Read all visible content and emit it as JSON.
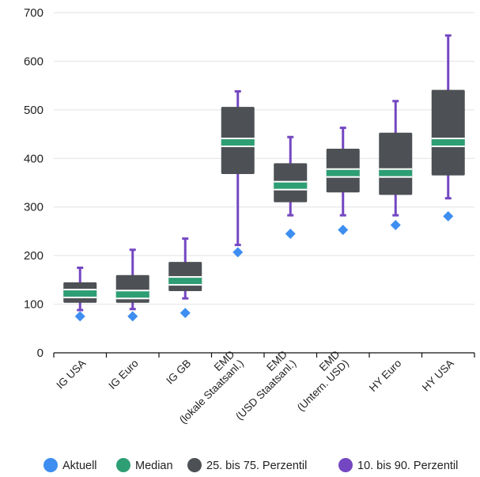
{
  "chart_data": {
    "type": "box",
    "title": "",
    "xlabel": "",
    "ylabel": "",
    "ylim": [
      0,
      700
    ],
    "yticks": [
      "0",
      "100",
      "200",
      "300",
      "400",
      "500",
      "600",
      "700"
    ],
    "grid": true,
    "legend_position": "bottom",
    "categories": [
      [
        "IG USA"
      ],
      [
        "IG Euro"
      ],
      [
        "IG GB"
      ],
      [
        "EMD",
        "(lokale Staatsanl.)"
      ],
      [
        "EMD",
        "(USD Staatsanl.)"
      ],
      [
        "EMD",
        "(Untern. USD)"
      ],
      [
        "HY Euro"
      ],
      [
        "HY USA"
      ]
    ],
    "series": [
      {
        "name": "Aktuell",
        "values": [
          75,
          75,
          82,
          207,
          245,
          253,
          263,
          281
        ]
      },
      {
        "name": "Median",
        "values": [
          122,
          120,
          148,
          433,
          344,
          370,
          370,
          433
        ]
      },
      {
        "name": "25. bis 75. Perzentil",
        "values": [
          [
            103,
            145
          ],
          [
            103,
            160
          ],
          [
            127,
            187
          ],
          [
            368,
            506
          ],
          [
            310,
            390
          ],
          [
            330,
            420
          ],
          [
            325,
            453
          ],
          [
            365,
            541
          ]
        ]
      },
      {
        "name": "10. bis 90. Perzentil",
        "values": [
          [
            88,
            175
          ],
          [
            90,
            212
          ],
          [
            112,
            235
          ],
          [
            222,
            538
          ],
          [
            283,
            444
          ],
          [
            283,
            463
          ],
          [
            283,
            518
          ],
          [
            318,
            653
          ]
        ]
      }
    ],
    "colors": {
      "aktuell": "#3d8ef0",
      "median": "#2e9e74",
      "box": "#4d5054",
      "whisker": "#7447c2",
      "grid": "#e2e2e2",
      "axis": "#111111"
    }
  }
}
